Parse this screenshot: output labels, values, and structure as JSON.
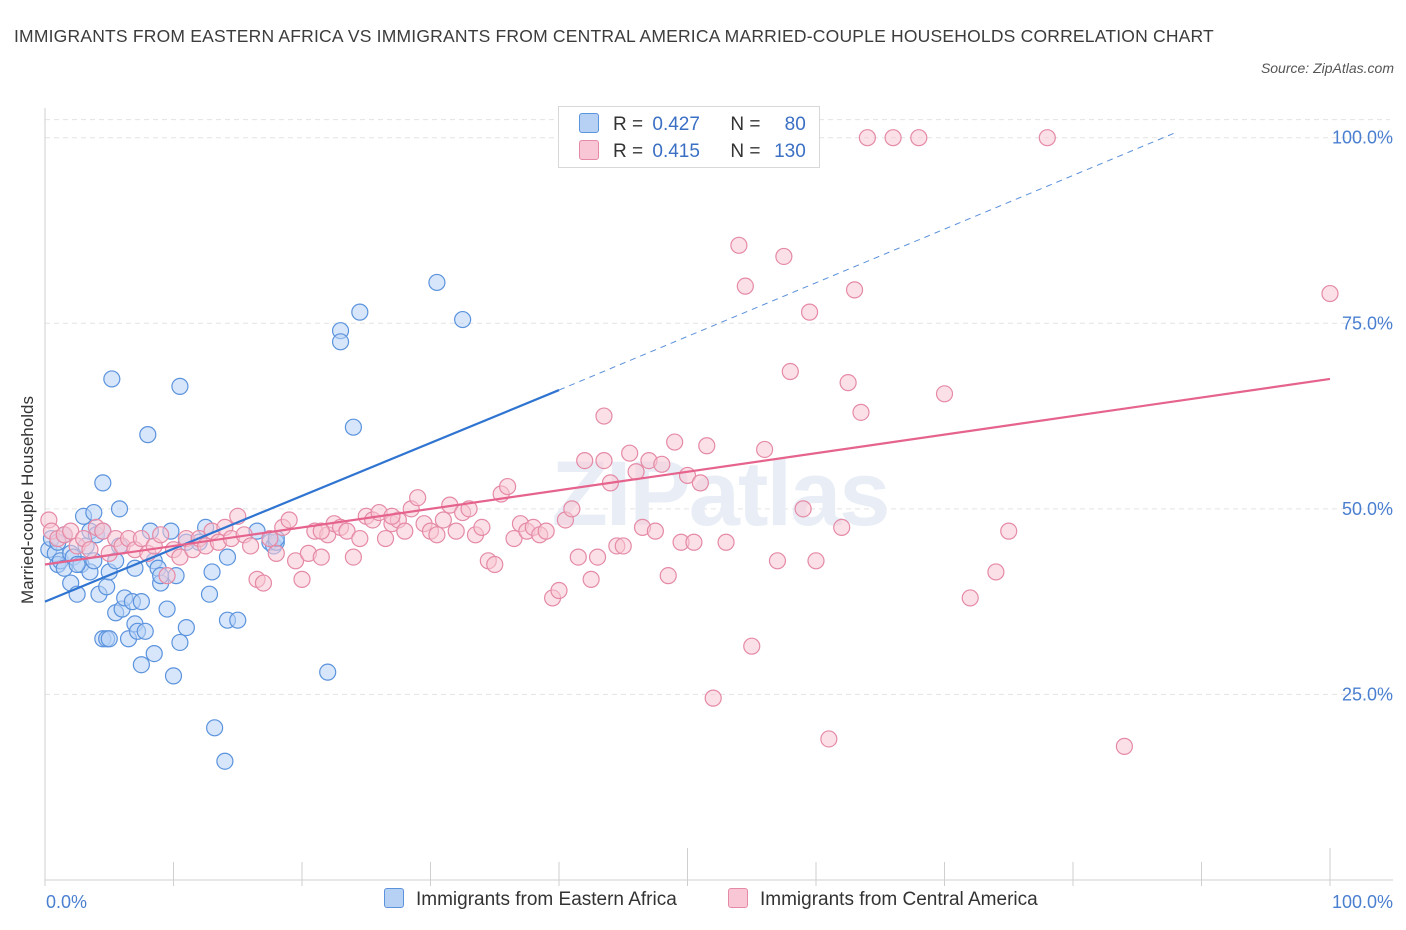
{
  "title": "IMMIGRANTS FROM EASTERN AFRICA VS IMMIGRANTS FROM CENTRAL AMERICA MARRIED-COUPLE HOUSEHOLDS CORRELATION CHART",
  "source": "Source: ZipAtlas.com",
  "watermark": "ZIPatlas",
  "legend": {
    "blue": {
      "r_label": "R =",
      "r_value": "0.427",
      "n_label": "N =",
      "n_value": "80"
    },
    "pink": {
      "r_label": "R =",
      "r_value": "0.415",
      "n_label": "N =",
      "n_value": "130"
    }
  },
  "colors": {
    "blue_fill": "#b7d1f5",
    "blue_stroke": "#5b93dd",
    "blue_line": "#2f74d0",
    "pink_fill": "#f8c6d4",
    "pink_stroke": "#e58aa6",
    "pink_line": "#e5638c",
    "axis_text": "#4a7fd0",
    "grid": "#e3e3e3"
  },
  "chart_data": {
    "type": "scatter",
    "xlabel": "",
    "ylabel": "Married-couple Households",
    "xlim": [
      0,
      100
    ],
    "ylim": [
      0,
      104
    ],
    "x_ticks": [
      "0.0%",
      "100.0%"
    ],
    "y_ticks": [
      {
        "value": 25,
        "label": "25.0%"
      },
      {
        "value": 50,
        "label": "50.0%"
      },
      {
        "value": 75,
        "label": "75.0%"
      },
      {
        "value": 100,
        "label": "100.0%"
      }
    ],
    "grid": true,
    "legend_position": "bottom",
    "series": [
      {
        "name": "Immigrants from Eastern Africa",
        "color": "blue",
        "trend": {
          "x0": 0,
          "y0": 37.5,
          "x1": 40,
          "y1": 66,
          "dash_to_x": 88,
          "dash_to_y": 100.7
        },
        "points": [
          [
            0.3,
            44.5
          ],
          [
            0.5,
            46
          ],
          [
            0.8,
            44
          ],
          [
            1,
            42.5
          ],
          [
            1.2,
            43
          ],
          [
            1.5,
            46.5
          ],
          [
            1.5,
            42
          ],
          [
            2,
            40
          ],
          [
            2,
            44
          ],
          [
            2.2,
            43.5
          ],
          [
            2.5,
            38.5
          ],
          [
            2.8,
            42.5
          ],
          [
            3,
            49
          ],
          [
            3.2,
            45
          ],
          [
            3.5,
            41.5
          ],
          [
            3.5,
            47
          ],
          [
            3.8,
            43
          ],
          [
            3.8,
            49.5
          ],
          [
            4,
            46.5
          ],
          [
            4.2,
            38.5
          ],
          [
            4.5,
            47
          ],
          [
            4.5,
            53.5
          ],
          [
            4.5,
            32.5
          ],
          [
            4.8,
            32.5
          ],
          [
            4.8,
            39.5
          ],
          [
            5,
            32.5
          ],
          [
            5,
            41.5
          ],
          [
            5.2,
            67.5
          ],
          [
            5.5,
            36
          ],
          [
            5.5,
            43
          ],
          [
            5.8,
            50
          ],
          [
            5.8,
            45
          ],
          [
            6,
            36.5
          ],
          [
            6.2,
            38
          ],
          [
            6.5,
            32.5
          ],
          [
            6.8,
            37.5
          ],
          [
            7,
            42
          ],
          [
            7,
            34.5
          ],
          [
            7.2,
            33.5
          ],
          [
            7.5,
            29
          ],
          [
            7.5,
            37.5
          ],
          [
            7.8,
            33.5
          ],
          [
            8,
            60
          ],
          [
            8.2,
            47
          ],
          [
            8.5,
            30.5
          ],
          [
            8.5,
            43
          ],
          [
            8.8,
            42
          ],
          [
            9,
            40
          ],
          [
            9,
            41
          ],
          [
            9.5,
            36.5
          ],
          [
            9.8,
            47
          ],
          [
            10,
            27.5
          ],
          [
            10.2,
            41
          ],
          [
            10.5,
            32
          ],
          [
            10.5,
            66.5
          ],
          [
            11,
            34
          ],
          [
            11,
            45.5
          ],
          [
            12,
            45.5
          ],
          [
            12.8,
            38.5
          ],
          [
            13,
            41.5
          ],
          [
            13.2,
            20.5
          ],
          [
            14,
            16
          ],
          [
            14.2,
            43.5
          ],
          [
            14.2,
            35
          ],
          [
            15,
            35
          ],
          [
            16.5,
            47
          ],
          [
            17.5,
            45.5
          ],
          [
            17.8,
            45
          ],
          [
            18,
            45.5
          ],
          [
            22,
            28
          ],
          [
            23,
            74
          ],
          [
            23,
            72.5
          ],
          [
            24,
            61
          ],
          [
            24.5,
            76.5
          ],
          [
            30.5,
            80.5
          ],
          [
            32.5,
            75.5
          ],
          [
            18,
            46
          ],
          [
            2.5,
            42.5
          ],
          [
            1,
            45.5
          ],
          [
            12.5,
            47.5
          ]
        ]
      },
      {
        "name": "Immigrants from Central America",
        "color": "pink",
        "trend": {
          "x0": 0,
          "y0": 42.5,
          "x1": 100,
          "y1": 67.5
        },
        "points": [
          [
            0.3,
            48.5
          ],
          [
            0.5,
            47
          ],
          [
            1,
            46
          ],
          [
            1.5,
            46.5
          ],
          [
            2,
            47
          ],
          [
            2.5,
            45
          ],
          [
            3,
            46
          ],
          [
            3.5,
            44.5
          ],
          [
            4,
            47.5
          ],
          [
            4.5,
            47
          ],
          [
            5,
            44
          ],
          [
            5.5,
            46
          ],
          [
            6,
            45
          ],
          [
            6.5,
            46
          ],
          [
            7,
            44.5
          ],
          [
            7.5,
            46
          ],
          [
            8,
            44
          ],
          [
            8.5,
            45
          ],
          [
            9,
            46.5
          ],
          [
            9.5,
            41
          ],
          [
            10,
            44.5
          ],
          [
            10.5,
            43.5
          ],
          [
            11,
            46
          ],
          [
            11.5,
            44.5
          ],
          [
            12,
            46
          ],
          [
            12.5,
            45
          ],
          [
            13,
            47
          ],
          [
            13.5,
            45.5
          ],
          [
            14,
            47.5
          ],
          [
            14.5,
            46
          ],
          [
            15,
            49
          ],
          [
            15.5,
            46.5
          ],
          [
            16,
            45
          ],
          [
            16.5,
            40.5
          ],
          [
            17,
            40
          ],
          [
            17.5,
            46
          ],
          [
            18,
            44
          ],
          [
            18.5,
            47.5
          ],
          [
            19,
            48.5
          ],
          [
            19.5,
            43
          ],
          [
            20,
            40.5
          ],
          [
            20.5,
            44
          ],
          [
            21,
            47
          ],
          [
            21.5,
            43.5
          ],
          [
            22,
            46.5
          ],
          [
            22.5,
            48
          ],
          [
            23,
            47.5
          ],
          [
            23.5,
            47
          ],
          [
            24,
            43.5
          ],
          [
            24.5,
            46
          ],
          [
            25,
            49
          ],
          [
            25.5,
            48.5
          ],
          [
            26,
            49.5
          ],
          [
            26.5,
            46
          ],
          [
            27,
            48
          ],
          [
            27.5,
            48.5
          ],
          [
            28,
            47
          ],
          [
            28.5,
            50
          ],
          [
            29,
            51.5
          ],
          [
            29.5,
            48
          ],
          [
            30,
            47
          ],
          [
            30.5,
            46.5
          ],
          [
            31,
            48.5
          ],
          [
            31.5,
            50.5
          ],
          [
            32,
            47
          ],
          [
            32.5,
            49.5
          ],
          [
            33,
            50
          ],
          [
            33.5,
            46.5
          ],
          [
            34,
            47.5
          ],
          [
            34.5,
            43
          ],
          [
            35,
            42.5
          ],
          [
            35.5,
            52
          ],
          [
            36,
            53
          ],
          [
            36.5,
            46
          ],
          [
            37,
            48
          ],
          [
            37.5,
            47
          ],
          [
            38,
            47.5
          ],
          [
            38.5,
            46.5
          ],
          [
            39,
            47
          ],
          [
            39.5,
            38
          ],
          [
            40,
            39
          ],
          [
            40.5,
            48.5
          ],
          [
            41,
            50
          ],
          [
            41.5,
            43.5
          ],
          [
            42,
            56.5
          ],
          [
            42.5,
            40.5
          ],
          [
            43,
            43.5
          ],
          [
            43.5,
            62.5
          ],
          [
            44,
            53.5
          ],
          [
            44.5,
            45
          ],
          [
            45,
            45
          ],
          [
            45.5,
            57.5
          ],
          [
            46,
            55
          ],
          [
            46.5,
            47.5
          ],
          [
            47,
            56.5
          ],
          [
            47.5,
            47
          ],
          [
            48,
            56
          ],
          [
            48.5,
            41
          ],
          [
            49,
            59
          ],
          [
            49.5,
            45.5
          ],
          [
            50,
            54.5
          ],
          [
            50.5,
            45.5
          ],
          [
            51,
            53.5
          ],
          [
            51.5,
            58.5
          ],
          [
            52,
            24.5
          ],
          [
            53,
            45.5
          ],
          [
            54,
            85.5
          ],
          [
            54.5,
            80
          ],
          [
            55,
            31.5
          ],
          [
            56,
            58
          ],
          [
            57,
            43
          ],
          [
            57.5,
            84
          ],
          [
            58,
            68.5
          ],
          [
            59,
            50
          ],
          [
            59.5,
            76.5
          ],
          [
            60,
            43
          ],
          [
            61,
            19
          ],
          [
            62,
            47.5
          ],
          [
            62.5,
            67
          ],
          [
            63,
            79.5
          ],
          [
            63.5,
            63
          ],
          [
            64,
            100
          ],
          [
            66,
            100
          ],
          [
            68,
            100
          ],
          [
            70,
            65.5
          ],
          [
            72,
            38
          ],
          [
            74,
            41.5
          ],
          [
            75,
            47
          ],
          [
            78,
            100
          ],
          [
            84,
            18
          ],
          [
            100,
            79
          ],
          [
            43.5,
            56.5
          ],
          [
            27,
            49
          ],
          [
            21.5,
            47
          ]
        ]
      }
    ]
  }
}
